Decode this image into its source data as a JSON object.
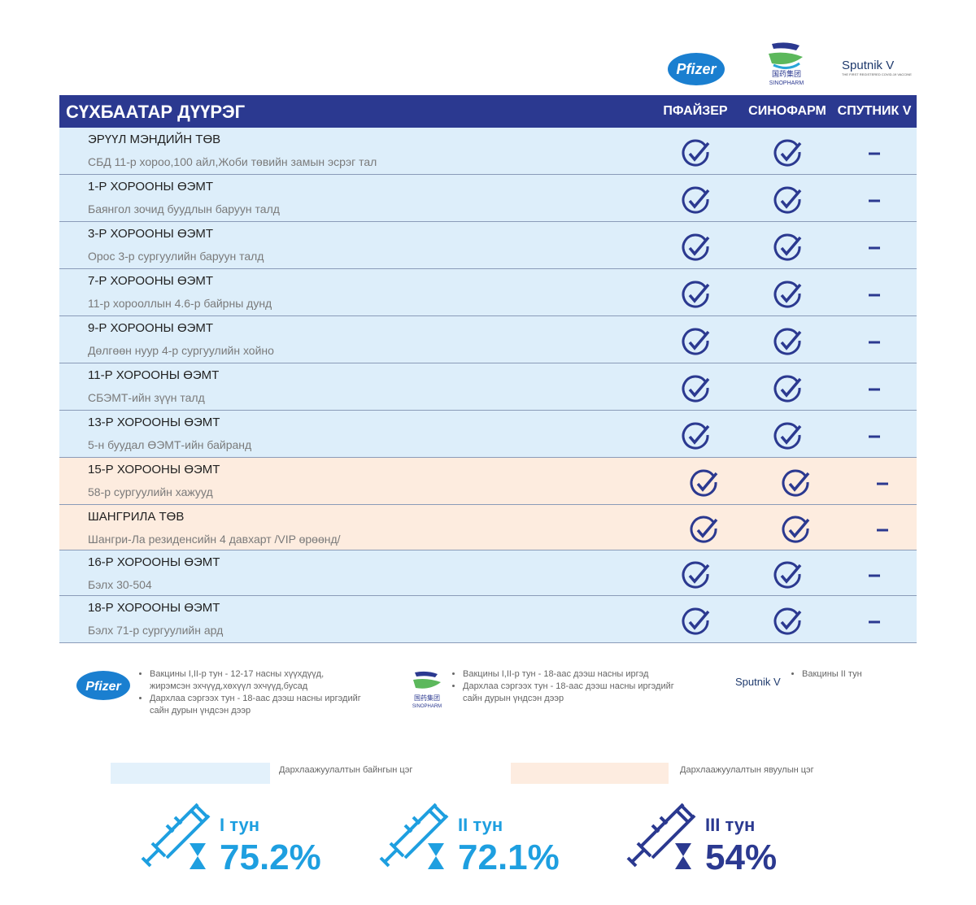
{
  "logos": {
    "pfizer": "Pfizer",
    "sinopharm_cn": "国药集团",
    "sinopharm": "SINOPHARM",
    "sputnik": "Sputnik V",
    "sputnik_tagline": "THE FIRST REGISTERED COVID-19 VACCINE"
  },
  "table": {
    "title": "СҮХБААТАР ДҮҮРЭГ",
    "columns": [
      "ПФАЙЗЕР",
      "СИНОФАРМ",
      "СПУТНИК V"
    ],
    "rows": [
      {
        "name": "ЭРҮҮЛ МЭНДИЙН ТӨВ",
        "address": "СБД 11-р хороо,100 айл,Жоби төвийн замын эсрэг тал",
        "point": "fixed",
        "available": [
          true,
          true,
          false
        ]
      },
      {
        "name": "1-Р ХОРООНЫ ӨЭМТ",
        "address": "Баянгол зочид буудлын баруун талд",
        "point": "fixed",
        "available": [
          true,
          true,
          false
        ]
      },
      {
        "name": "3-Р ХОРООНЫ ӨЭМТ",
        "address": "Орос 3-р сургуулийн баруун талд",
        "point": "fixed",
        "available": [
          true,
          true,
          false
        ]
      },
      {
        "name": "7-Р ХОРООНЫ ӨЭМТ",
        "address": "11-р хорооллын  4.6-р байрны дунд",
        "point": "fixed",
        "available": [
          true,
          true,
          false
        ]
      },
      {
        "name": "9-Р ХОРООНЫ ӨЭМТ",
        "address": "Дөлгөөн нуур 4-р сургуулийн хойно",
        "point": "fixed",
        "available": [
          true,
          true,
          false
        ]
      },
      {
        "name": "11-Р ХОРООНЫ ӨЭМТ",
        "address": "СБЭМТ-ийн зүүн талд",
        "point": "fixed",
        "available": [
          true,
          true,
          false
        ]
      },
      {
        "name": "13-Р ХОРООНЫ ӨЭМТ",
        "address": "5-н буудал ӨЭМТ-ийн байранд",
        "point": "fixed",
        "available": [
          true,
          true,
          false
        ]
      },
      {
        "name": "15-Р  ХОРООНЫ ӨЭМТ",
        "address": "58-р сургуулийн хажууд",
        "point": "mobile",
        "available": [
          true,
          true,
          false
        ]
      },
      {
        "name": "ШАНГРИЛА ТӨВ",
        "address": "Шангри-Ла резиденсийн 4 давхарт /VIP өрөөнд/",
        "point": "mobile",
        "available": [
          true,
          true,
          false
        ]
      },
      {
        "name": "16-Р ХОРООНЫ ӨЭМТ",
        "address": "Бэлх 30-504",
        "point": "fixed",
        "available": [
          true,
          true,
          false
        ]
      },
      {
        "name": "18-Р  ХОРООНЫ ӨЭМТ",
        "address": "Бэлх 71-р сургуулийн ард",
        "point": "fixed",
        "available": [
          true,
          true,
          false
        ]
      }
    ]
  },
  "notes": {
    "pfizer": [
      "Вакцины I,II-р тун - 12-17 насны хүүхдүүд, жирэмсэн эхчүүд,хөхүүл эхчүүд,бусад",
      "Дархлаа сэргээх тун - 18-аас дээш насны иргэдийг сайн дурын үндсэн дээр"
    ],
    "sinopharm": [
      "Вакцины I,II-р тун - 18-аас дээш насны иргэд",
      "Дархлаа сэргээх тун - 18-аас дээш насны иргэдийг сайн дурын үндсэн дээр"
    ],
    "sputnik": [
      "Вакцины II тун"
    ]
  },
  "legend": {
    "fixed": "Дархлаажуулалтын байнгын цэг",
    "mobile": "Дархлаажуулалтын явуулын цэг"
  },
  "doses": [
    {
      "label": "I тун",
      "value": "75.2%"
    },
    {
      "label": "II тун",
      "value": "72.1%"
    },
    {
      "label": "III тун",
      "value": "54%"
    }
  ]
}
